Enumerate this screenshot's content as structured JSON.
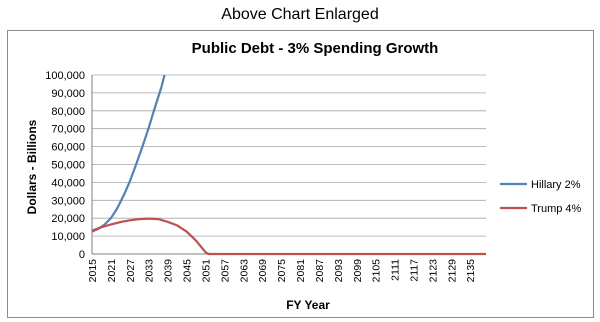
{
  "page": {
    "caption": "Above Chart Enlarged"
  },
  "chart_data": {
    "type": "line",
    "title": "Public Debt - 3% Spending Growth",
    "xlabel": "FY Year",
    "ylabel": "Dollars - Billions",
    "ylim": [
      0,
      100000
    ],
    "xlim": [
      2015,
      2140
    ],
    "yticks": [
      "0",
      "10,000",
      "20,000",
      "30,000",
      "40,000",
      "50,000",
      "60,000",
      "70,000",
      "80,000",
      "90,000",
      "100,000"
    ],
    "xticks": [
      "2015",
      "2021",
      "2027",
      "2033",
      "2039",
      "2045",
      "2051",
      "2057",
      "2063",
      "2069",
      "2075",
      "2081",
      "2087",
      "2093",
      "2099",
      "2105",
      "2111",
      "2117",
      "2123",
      "2129",
      "2135"
    ],
    "grid": true,
    "legend": "right",
    "series": [
      {
        "name": "Hillary 2%",
        "color": "#4f81bd",
        "x": [
          2015,
          2017,
          2019,
          2021,
          2023,
          2025,
          2027,
          2029,
          2031,
          2033,
          2035,
          2037,
          2038
        ],
        "y": [
          12500,
          14000,
          16500,
          20000,
          25500,
          32500,
          40500,
          50000,
          60000,
          70500,
          82000,
          93000,
          100000
        ]
      },
      {
        "name": "Trump 4%",
        "color": "#c0504d",
        "x": [
          2015,
          2018,
          2021,
          2024,
          2027,
          2030,
          2033,
          2036,
          2039,
          2042,
          2045,
          2048,
          2051,
          2052,
          2140
        ],
        "y": [
          13000,
          15000,
          16500,
          17800,
          18800,
          19500,
          19800,
          19500,
          18000,
          16000,
          12500,
          7500,
          1000,
          0,
          0
        ]
      }
    ]
  }
}
